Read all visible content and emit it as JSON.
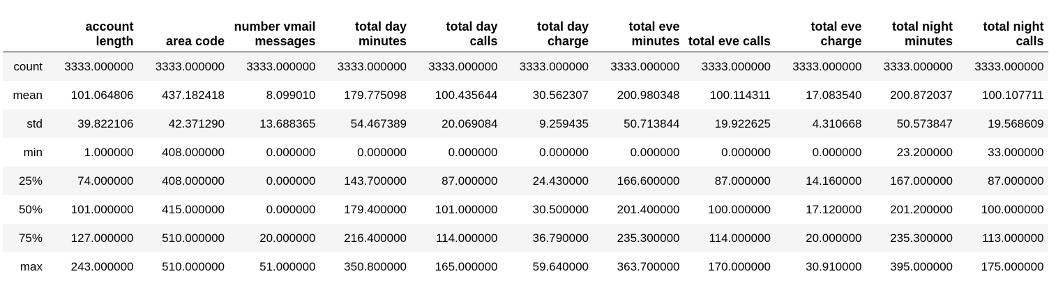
{
  "table": {
    "columns": [
      "account length",
      "area code",
      "number vmail messages",
      "total day minutes",
      "total day calls",
      "total day charge",
      "total eve minutes",
      "total eve calls",
      "total eve charge",
      "total night minutes",
      "total night calls"
    ],
    "rows": [
      {
        "label": "count",
        "values": [
          "3333.000000",
          "3333.000000",
          "3333.000000",
          "3333.000000",
          "3333.000000",
          "3333.000000",
          "3333.000000",
          "3333.000000",
          "3333.000000",
          "3333.000000",
          "3333.000000"
        ]
      },
      {
        "label": "mean",
        "values": [
          "101.064806",
          "437.182418",
          "8.099010",
          "179.775098",
          "100.435644",
          "30.562307",
          "200.980348",
          "100.114311",
          "17.083540",
          "200.872037",
          "100.107711"
        ]
      },
      {
        "label": "std",
        "values": [
          "39.822106",
          "42.371290",
          "13.688365",
          "54.467389",
          "20.069084",
          "9.259435",
          "50.713844",
          "19.922625",
          "4.310668",
          "50.573847",
          "19.568609"
        ]
      },
      {
        "label": "min",
        "values": [
          "1.000000",
          "408.000000",
          "0.000000",
          "0.000000",
          "0.000000",
          "0.000000",
          "0.000000",
          "0.000000",
          "0.000000",
          "23.200000",
          "33.000000"
        ]
      },
      {
        "label": "25%",
        "values": [
          "74.000000",
          "408.000000",
          "0.000000",
          "143.700000",
          "87.000000",
          "24.430000",
          "166.600000",
          "87.000000",
          "14.160000",
          "167.000000",
          "87.000000"
        ]
      },
      {
        "label": "50%",
        "values": [
          "101.000000",
          "415.000000",
          "0.000000",
          "179.400000",
          "101.000000",
          "30.500000",
          "201.400000",
          "100.000000",
          "17.120000",
          "201.200000",
          "100.000000"
        ]
      },
      {
        "label": "75%",
        "values": [
          "127.000000",
          "510.000000",
          "20.000000",
          "216.400000",
          "114.000000",
          "36.790000",
          "235.300000",
          "114.000000",
          "20.000000",
          "235.300000",
          "113.000000"
        ]
      },
      {
        "label": "max",
        "values": [
          "243.000000",
          "510.000000",
          "51.000000",
          "350.800000",
          "165.000000",
          "59.640000",
          "363.700000",
          "170.000000",
          "30.910000",
          "395.000000",
          "175.000000"
        ]
      }
    ]
  }
}
